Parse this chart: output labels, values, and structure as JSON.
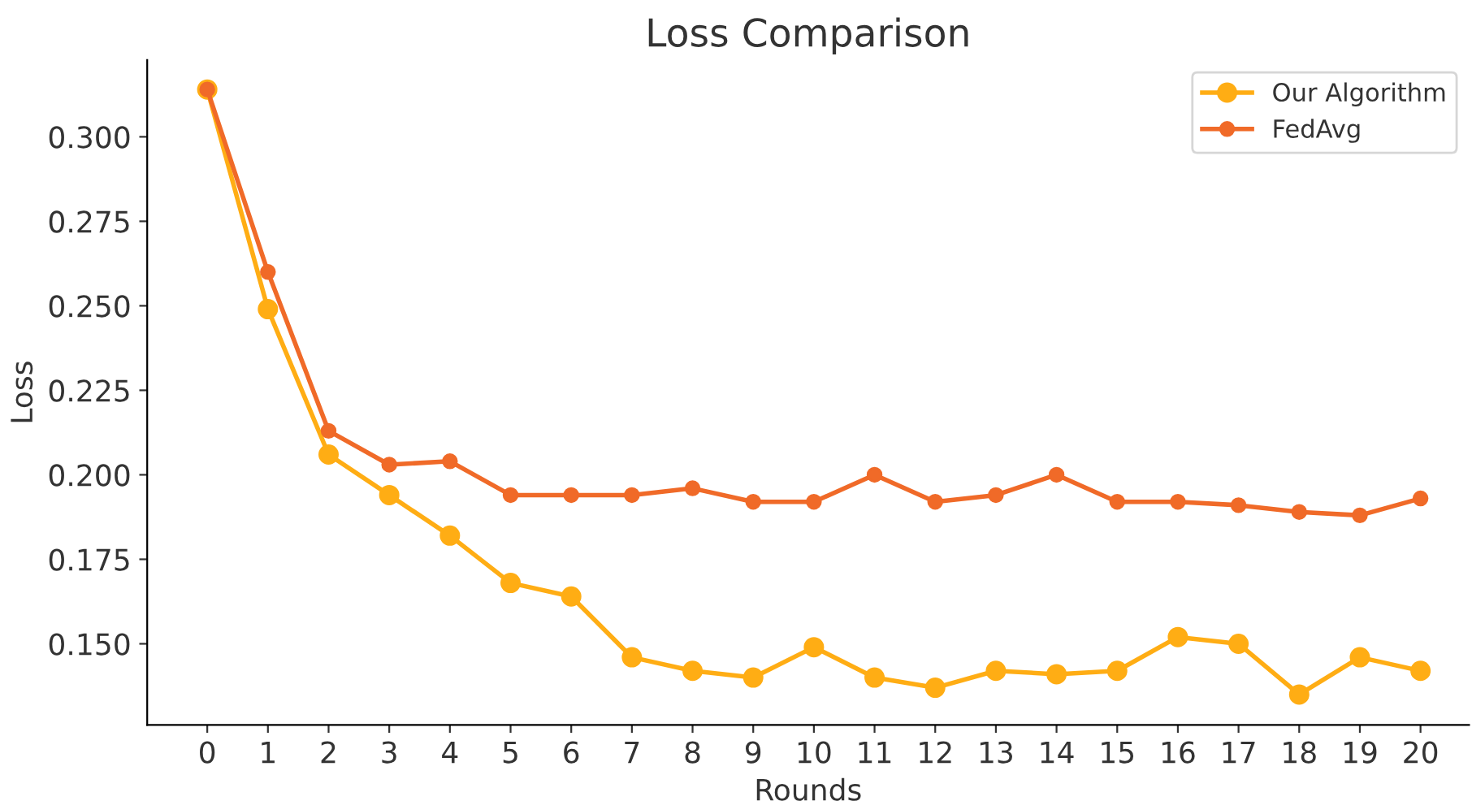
{
  "chart_data": {
    "type": "line",
    "title": "Loss Comparison",
    "xlabel": "Rounds",
    "ylabel": "Loss",
    "x": [
      0,
      1,
      2,
      3,
      4,
      5,
      6,
      7,
      8,
      9,
      10,
      11,
      12,
      13,
      14,
      15,
      16,
      17,
      18,
      19,
      20
    ],
    "series": [
      {
        "name": "Our Algorithm",
        "color": "#ffad14",
        "values": [
          0.314,
          0.249,
          0.206,
          0.194,
          0.182,
          0.168,
          0.164,
          0.146,
          0.142,
          0.14,
          0.149,
          0.14,
          0.137,
          0.142,
          0.141,
          0.142,
          0.152,
          0.15,
          0.135,
          0.146,
          0.142
        ]
      },
      {
        "name": "FedAvg",
        "color": "#f06a28",
        "values": [
          0.314,
          0.26,
          0.213,
          0.203,
          0.204,
          0.194,
          0.194,
          0.194,
          0.196,
          0.192,
          0.192,
          0.2,
          0.192,
          0.194,
          0.2,
          0.192,
          0.192,
          0.191,
          0.189,
          0.188,
          0.193
        ]
      }
    ],
    "xlim": [
      -0.99,
      20.8
    ],
    "xticks": [
      0,
      1,
      2,
      3,
      4,
      5,
      6,
      7,
      8,
      9,
      10,
      11,
      12,
      13,
      14,
      15,
      16,
      17,
      18,
      19,
      20
    ],
    "ylim": [
      0.126,
      0.3227
    ],
    "yticks": [
      {
        "value": 0.15,
        "label": "0.150"
      },
      {
        "value": 0.175,
        "label": "0.175"
      },
      {
        "value": 0.2,
        "label": "0.200"
      },
      {
        "value": 0.225,
        "label": "0.225"
      },
      {
        "value": 0.25,
        "label": "0.250"
      },
      {
        "value": 0.275,
        "label": "0.275"
      },
      {
        "value": 0.3,
        "label": "0.300"
      }
    ],
    "grid": false,
    "legend": "top right",
    "marker": "circle",
    "line_style": "solid"
  }
}
